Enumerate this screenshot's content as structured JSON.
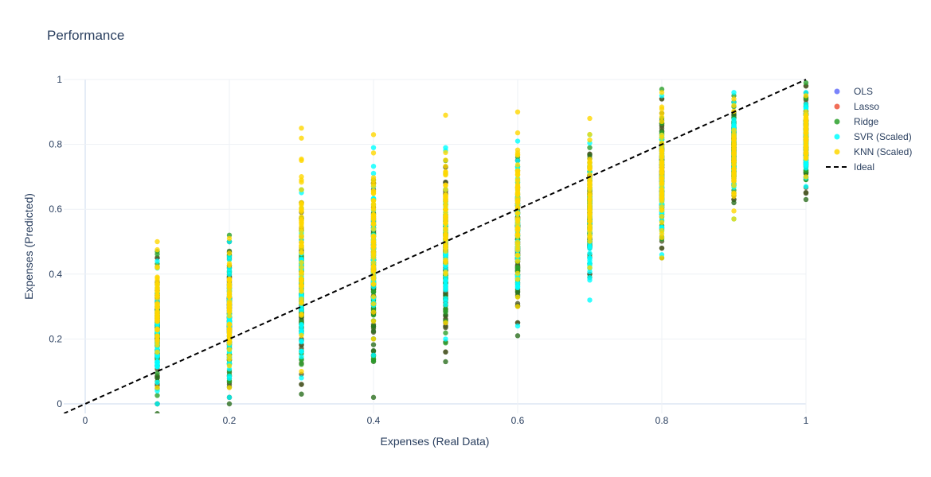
{
  "chart_data": {
    "type": "scatter",
    "title": "Performance",
    "xlabel": "Expenses (Real Data)",
    "ylabel": "Expenses (Predicted)",
    "xlim": [
      -0.03,
      1.0
    ],
    "ylim": [
      -0.03,
      1.0
    ],
    "x_ticks": [
      "0",
      "0.2",
      "0.4",
      "0.6",
      "0.8",
      "1"
    ],
    "y_ticks": [
      "0",
      "0.2",
      "0.4",
      "0.6",
      "0.8",
      "1"
    ],
    "grid": true,
    "legend_position": "right",
    "x_categories": [
      0.1,
      0.2,
      0.3,
      0.4,
      0.5,
      0.6,
      0.7,
      0.8,
      0.9,
      1.0
    ],
    "series": [
      {
        "name": "OLS",
        "color": "#636efa",
        "marker": "circle",
        "ranges": [
          [
            0.0,
            0.45
          ],
          [
            0.02,
            0.5
          ],
          [
            0.06,
            0.62
          ],
          [
            0.15,
            0.68
          ],
          [
            0.16,
            0.73
          ],
          [
            0.25,
            0.75
          ],
          [
            0.4,
            0.77
          ],
          [
            0.48,
            0.94
          ],
          [
            0.63,
            0.93
          ],
          [
            0.65,
            0.98
          ]
        ]
      },
      {
        "name": "Lasso",
        "color": "#ef553b",
        "marker": "circle",
        "ranges": [
          [
            0.0,
            0.45
          ],
          [
            0.02,
            0.5
          ],
          [
            0.06,
            0.62
          ],
          [
            0.15,
            0.68
          ],
          [
            0.16,
            0.73
          ],
          [
            0.25,
            0.75
          ],
          [
            0.4,
            0.77
          ],
          [
            0.48,
            0.94
          ],
          [
            0.63,
            0.93
          ],
          [
            0.65,
            0.98
          ]
        ]
      },
      {
        "name": "Ridge",
        "color": "#2ca02c",
        "marker": "circle",
        "ranges": [
          [
            -0.03,
            0.47
          ],
          [
            0.0,
            0.52
          ],
          [
            0.03,
            0.66
          ],
          [
            0.02,
            0.69
          ],
          [
            0.13,
            0.75
          ],
          [
            0.21,
            0.76
          ],
          [
            0.39,
            0.79
          ],
          [
            0.45,
            0.97
          ],
          [
            0.62,
            0.95
          ],
          [
            0.63,
            0.99
          ]
        ]
      },
      {
        "name": "SVR (Scaled)",
        "color": "#00ffff",
        "marker": "circle",
        "ranges": [
          [
            0.0,
            0.44
          ],
          [
            0.02,
            0.5
          ],
          [
            0.08,
            0.66
          ],
          [
            0.15,
            0.79
          ],
          [
            0.2,
            0.79
          ],
          [
            0.24,
            0.81
          ],
          [
            0.32,
            0.83
          ],
          [
            0.46,
            0.95
          ],
          [
            0.57,
            0.96
          ],
          [
            0.67,
            0.96
          ]
        ]
      },
      {
        "name": "KNN (Scaled)",
        "color": "#ffd700",
        "marker": "circle",
        "ranges": [
          [
            0.05,
            0.5
          ],
          [
            0.05,
            0.51
          ],
          [
            0.1,
            0.85
          ],
          [
            0.2,
            0.83
          ],
          [
            0.25,
            0.89
          ],
          [
            0.3,
            0.9
          ],
          [
            0.42,
            0.88
          ],
          [
            0.45,
            0.96
          ],
          [
            0.57,
            0.94
          ],
          [
            0.7,
            0.95
          ]
        ]
      },
      {
        "name": "Ideal",
        "color": "#000000",
        "marker": "dashed-line",
        "x": [
          -0.03,
          1.0
        ],
        "y": [
          -0.03,
          1.0
        ]
      }
    ]
  }
}
